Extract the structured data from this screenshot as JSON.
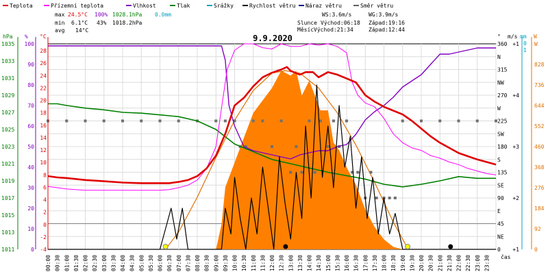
{
  "chart_data": {
    "type": "line",
    "title": "9.9.2020",
    "legend": [
      {
        "name": "Teplota",
        "color": "#e00000"
      },
      {
        "name": "Přízemní teplota",
        "color": "#ff00ff"
      },
      {
        "name": "Vlhkost",
        "color": "#8000c0"
      },
      {
        "name": "Tlak",
        "color": "#008000"
      },
      {
        "name": "Srážky",
        "color": "#00a0c0"
      },
      {
        "name": "Rychlost větru",
        "color": "#000000"
      },
      {
        "name": "Náraz větru",
        "color": "#000080"
      },
      {
        "name": "Směr větru",
        "color": "#606060"
      }
    ],
    "stats": {
      "max_label": "max",
      "min_label": "min",
      "avg_label": "avg",
      "max_temp": "24.5°C",
      "max_hum": "100%",
      "max_press": "1028.1hPa",
      "max_rain": "0.0mm",
      "min_temp": "6.1°C",
      "min_hum": "43%",
      "min_press": "1018.2hPa",
      "avg_temp": "14°C",
      "ws": "WS:3.6m/s",
      "wg": "WG:3.9m/s",
      "slunce_label": "Slunce",
      "slunce_vychod": "Východ:06:18",
      "slunce_zapad": "Západ:19:16",
      "mesic_label": "Měsíc",
      "mesic_vychod": "Východ:21:34",
      "mesic_zapad": "Západ:12:44"
    },
    "axes": {
      "hpa_title": "hPa",
      "hum_title": "%",
      "temp_title": "°C",
      "dir_title": "°",
      "wind_title": "m/s",
      "rain_title": "mm",
      "solar_title": "W",
      "time_title": "čas",
      "hpa_ticks": [
        "1035",
        "1033",
        "1031",
        "1029",
        "1027",
        "1025",
        "1023",
        "1021",
        "1019",
        "1017",
        "1015",
        "1013",
        "1011"
      ],
      "hum_ticks": [
        "100",
        "90",
        "80",
        "70",
        "60",
        "50",
        "40",
        "30",
        "20",
        "10",
        "0"
      ],
      "temp_ticks": [
        "28",
        "26",
        "24",
        "22",
        "20",
        "18",
        "16",
        "14",
        "12",
        "10",
        "8",
        "6",
        "4",
        "2",
        "0",
        "-2",
        "-4"
      ],
      "dir_ticks": [
        "360",
        "N",
        "315",
        "NW",
        "270",
        "W",
        "225",
        "SW",
        "180",
        "S",
        "135",
        "SE",
        "90",
        "E",
        "45",
        "NE",
        "0"
      ],
      "wind_ticks": [
        "+1",
        "+4",
        "+3",
        "+2",
        "+1"
      ],
      "rain_ticks": [
        "0",
        "1"
      ],
      "solar_ticks": [
        "W",
        "828",
        "736",
        "644",
        "552",
        "460",
        "368",
        "276",
        "184",
        "92",
        "0"
      ],
      "time_ticks": [
        "00:00",
        "00:30",
        "01:00",
        "01:30",
        "02:00",
        "02:30",
        "03:00",
        "03:30",
        "04:00",
        "04:30",
        "05:00",
        "05:30",
        "06:00",
        "06:30",
        "07:00",
        "07:30",
        "08:00",
        "08:30",
        "09:00",
        "09:30",
        "10:00",
        "10:30",
        "11:00",
        "11:30",
        "12:00",
        "12:30",
        "13:00",
        "13:30",
        "14:00",
        "14:30",
        "15:00",
        "15:30",
        "16:00",
        "16:30",
        "17:00",
        "17:30",
        "18:00",
        "18:30",
        "19:00",
        "19:30",
        "20:00",
        "20:30",
        "21:00",
        "21:30",
        "22:00",
        "22:30",
        "23:00",
        "23:30"
      ]
    },
    "ranges": {
      "hours": [
        0,
        24
      ],
      "temp": [
        -4,
        28
      ],
      "hum": [
        0,
        100
      ],
      "press": [
        1011,
        1035
      ],
      "dir": [
        0,
        360
      ],
      "wind": [
        0,
        4
      ],
      "solar": [
        0,
        828
      ]
    },
    "series": {
      "temperature": [
        [
          0,
          7.4
        ],
        [
          0.5,
          7.2
        ],
        [
          1,
          7.1
        ],
        [
          2,
          6.8
        ],
        [
          3,
          6.6
        ],
        [
          4,
          6.4
        ],
        [
          5,
          6.3
        ],
        [
          6,
          6.3
        ],
        [
          6.5,
          6.3
        ],
        [
          7,
          6.5
        ],
        [
          7.5,
          6.8
        ],
        [
          8,
          7.4
        ],
        [
          8.5,
          8.6
        ],
        [
          9,
          10.6
        ],
        [
          9.5,
          14
        ],
        [
          10,
          18.4
        ],
        [
          10.5,
          19.6
        ],
        [
          11,
          21.4
        ],
        [
          11.5,
          22.8
        ],
        [
          12,
          23.5
        ],
        [
          12.5,
          24
        ],
        [
          12.8,
          24.4
        ],
        [
          13,
          23.8
        ],
        [
          13.5,
          23.2
        ],
        [
          13.8,
          23.6
        ],
        [
          14.2,
          23.6
        ],
        [
          14.5,
          22.8
        ],
        [
          15,
          23.6
        ],
        [
          15.5,
          23.2
        ],
        [
          16,
          22.6
        ],
        [
          16.5,
          22
        ],
        [
          17,
          20
        ],
        [
          17.5,
          19
        ],
        [
          18,
          18.2
        ],
        [
          18.5,
          17.6
        ],
        [
          19,
          17
        ],
        [
          19.5,
          16
        ],
        [
          20,
          14.8
        ],
        [
          20.5,
          13.6
        ],
        [
          21,
          12.6
        ],
        [
          21.5,
          11.8
        ],
        [
          22,
          11
        ],
        [
          22.5,
          10.5
        ],
        [
          23,
          10
        ],
        [
          23.5,
          9.6
        ],
        [
          24,
          9.2
        ]
      ],
      "ground_temperature": [
        [
          0,
          5.8
        ],
        [
          1,
          5.4
        ],
        [
          2,
          5.2
        ],
        [
          3,
          5.2
        ],
        [
          4,
          5.2
        ],
        [
          5,
          5.2
        ],
        [
          6,
          5.2
        ],
        [
          6.5,
          5.3
        ],
        [
          7,
          5.6
        ],
        [
          7.5,
          6
        ],
        [
          8,
          6.8
        ],
        [
          8.5,
          8.6
        ],
        [
          9,
          12
        ],
        [
          9.3,
          18
        ],
        [
          9.6,
          24
        ],
        [
          10,
          27
        ],
        [
          10.5,
          28
        ],
        [
          11,
          28
        ],
        [
          11.5,
          27.4
        ],
        [
          12,
          27.2
        ],
        [
          12.5,
          28
        ],
        [
          13,
          27.6
        ],
        [
          13.5,
          27.6
        ],
        [
          14,
          28
        ],
        [
          14.5,
          27.8
        ],
        [
          15,
          28
        ],
        [
          15.5,
          27.6
        ],
        [
          16,
          26.6
        ],
        [
          16.3,
          22
        ],
        [
          16.6,
          20
        ],
        [
          17,
          18.8
        ],
        [
          17.5,
          18.2
        ],
        [
          18,
          16.4
        ],
        [
          18.5,
          14
        ],
        [
          19,
          12.6
        ],
        [
          19.5,
          11.8
        ],
        [
          20,
          11.4
        ],
        [
          20.5,
          10.6
        ],
        [
          21,
          10.2
        ],
        [
          21.5,
          9.6
        ],
        [
          22,
          9.2
        ],
        [
          22.5,
          8.6
        ],
        [
          23,
          8.2
        ],
        [
          23.5,
          7.8
        ],
        [
          24,
          7.6
        ]
      ],
      "humidity": [
        [
          0,
          99
        ],
        [
          1,
          99
        ],
        [
          2,
          99
        ],
        [
          3,
          99
        ],
        [
          4,
          99
        ],
        [
          5,
          99
        ],
        [
          6,
          99
        ],
        [
          7,
          99
        ],
        [
          8,
          99
        ],
        [
          8.5,
          99
        ],
        [
          9,
          99
        ],
        [
          9.3,
          99
        ],
        [
          9.5,
          92
        ],
        [
          9.7,
          70
        ],
        [
          10,
          60
        ],
        [
          10.5,
          50
        ],
        [
          11,
          48
        ],
        [
          11.5,
          47
        ],
        [
          12,
          46
        ],
        [
          12.5,
          45
        ],
        [
          13,
          44
        ],
        [
          13.5,
          46
        ],
        [
          14,
          47
        ],
        [
          14.5,
          48
        ],
        [
          15,
          48
        ],
        [
          15.5,
          50
        ],
        [
          16,
          51
        ],
        [
          16.5,
          56
        ],
        [
          17,
          63
        ],
        [
          17.5,
          67
        ],
        [
          18,
          70
        ],
        [
          18.5,
          74
        ],
        [
          19,
          79
        ],
        [
          19.5,
          82
        ],
        [
          20,
          85
        ],
        [
          20.5,
          90
        ],
        [
          21,
          95
        ],
        [
          21.5,
          95
        ],
        [
          22,
          96
        ],
        [
          22.5,
          97
        ],
        [
          23,
          98
        ],
        [
          23.5,
          98
        ],
        [
          24,
          98
        ]
      ],
      "pressure": [
        [
          0,
          1028
        ],
        [
          0.5,
          1028
        ],
        [
          1,
          1027.8
        ],
        [
          2,
          1027.5
        ],
        [
          3,
          1027.3
        ],
        [
          4,
          1027
        ],
        [
          5,
          1026.9
        ],
        [
          6,
          1026.7
        ],
        [
          7,
          1026.5
        ],
        [
          8,
          1026
        ],
        [
          9,
          1025
        ],
        [
          10,
          1023.3
        ],
        [
          11,
          1022.4
        ],
        [
          12,
          1021.5
        ],
        [
          13,
          1021
        ],
        [
          14,
          1020.5
        ],
        [
          15,
          1020
        ],
        [
          16,
          1019.6
        ],
        [
          17,
          1019.2
        ],
        [
          18,
          1018.6
        ],
        [
          19,
          1018.3
        ],
        [
          20,
          1018.6
        ],
        [
          21,
          1019
        ],
        [
          22,
          1019.5
        ],
        [
          23,
          1019.3
        ],
        [
          24,
          1019.3
        ]
      ],
      "solar_radiation": [
        [
          9.0,
          0
        ],
        [
          9.3,
          100
        ],
        [
          9.5,
          250
        ],
        [
          10,
          350
        ],
        [
          10.5,
          450
        ],
        [
          11,
          550
        ],
        [
          11.5,
          600
        ],
        [
          12,
          650
        ],
        [
          12.5,
          720
        ],
        [
          13,
          700
        ],
        [
          13.3,
          720
        ],
        [
          13.6,
          620
        ],
        [
          14,
          680
        ],
        [
          14.3,
          620
        ],
        [
          14.6,
          560
        ],
        [
          15,
          560
        ],
        [
          15.3,
          430
        ],
        [
          15.6,
          400
        ],
        [
          16,
          330
        ],
        [
          16.5,
          260
        ],
        [
          17,
          160
        ],
        [
          17.5,
          90
        ],
        [
          18,
          40
        ],
        [
          18.5,
          10
        ],
        [
          19,
          0
        ]
      ],
      "clear_sky_radiation": [
        [
          6.3,
          0
        ],
        [
          7,
          70
        ],
        [
          8,
          210
        ],
        [
          9,
          370
        ],
        [
          10,
          520
        ],
        [
          11,
          640
        ],
        [
          12,
          710
        ],
        [
          12.7,
          720
        ],
        [
          13.5,
          710
        ],
        [
          14.5,
          650
        ],
        [
          15.5,
          550
        ],
        [
          16.5,
          420
        ],
        [
          17.5,
          270
        ],
        [
          18.5,
          110
        ],
        [
          19.3,
          0
        ]
      ],
      "wind_speed": [
        [
          0,
          0
        ],
        [
          6,
          0
        ],
        [
          6.6,
          0.8
        ],
        [
          6.9,
          0.2
        ],
        [
          7.2,
          0.8
        ],
        [
          7.5,
          0
        ],
        [
          9.3,
          0
        ],
        [
          9.5,
          0.8
        ],
        [
          9.8,
          0.3
        ],
        [
          10,
          1.4
        ],
        [
          10.3,
          0.6
        ],
        [
          10.6,
          0
        ],
        [
          10.9,
          1.0
        ],
        [
          11.2,
          0.3
        ],
        [
          11.5,
          1.6
        ],
        [
          11.8,
          0.8
        ],
        [
          12.1,
          0
        ],
        [
          12.4,
          1.8
        ],
        [
          12.7,
          0.9
        ],
        [
          13,
          0.2
        ],
        [
          13.3,
          1.5
        ],
        [
          13.6,
          0.6
        ],
        [
          13.8,
          2.4
        ],
        [
          14.1,
          1.0
        ],
        [
          14.4,
          3.2
        ],
        [
          14.7,
          1.4
        ],
        [
          15,
          2.4
        ],
        [
          15.3,
          1.2
        ],
        [
          15.6,
          2.8
        ],
        [
          15.9,
          1.6
        ],
        [
          16.2,
          2.2
        ],
        [
          16.5,
          0.8
        ],
        [
          16.8,
          1.8
        ],
        [
          17.1,
          0.6
        ],
        [
          17.4,
          1.4
        ],
        [
          17.7,
          0.3
        ],
        [
          18,
          1.0
        ],
        [
          18.3,
          0.3
        ],
        [
          18.6,
          0.7
        ],
        [
          19,
          0
        ],
        [
          24,
          0
        ]
      ],
      "wind_dir": [
        [
          0,
          225
        ],
        [
          1,
          225
        ],
        [
          2,
          225
        ],
        [
          3,
          225
        ],
        [
          4,
          225
        ],
        [
          5,
          225
        ],
        [
          6,
          225
        ],
        [
          7,
          225
        ],
        [
          8,
          225
        ],
        [
          9,
          225
        ],
        [
          9.5,
          225
        ],
        [
          10,
          225
        ],
        [
          10.3,
          180
        ],
        [
          10.6,
          180
        ],
        [
          11,
          225
        ],
        [
          11.5,
          225
        ],
        [
          12,
          180
        ],
        [
          12.5,
          225
        ],
        [
          13,
          135
        ],
        [
          13.3,
          180
        ],
        [
          13.6,
          135
        ],
        [
          14,
          225
        ],
        [
          14.3,
          135
        ],
        [
          14.6,
          225
        ],
        [
          15,
          180
        ],
        [
          15.3,
          225
        ],
        [
          15.6,
          180
        ],
        [
          16,
          225
        ],
        [
          16.3,
          135
        ],
        [
          16.6,
          135
        ],
        [
          17,
          90
        ],
        [
          17.3,
          135
        ],
        [
          17.6,
          90
        ],
        [
          18,
          90
        ],
        [
          18.3,
          90
        ],
        [
          18.6,
          90
        ],
        [
          19,
          225
        ],
        [
          20,
          225
        ],
        [
          21,
          225
        ],
        [
          22,
          225
        ],
        [
          23,
          225
        ],
        [
          24,
          225
        ]
      ],
      "sun_markers": [
        6.3,
        19.27
      ],
      "moon_markers": [
        12.73,
        21.57
      ]
    }
  }
}
